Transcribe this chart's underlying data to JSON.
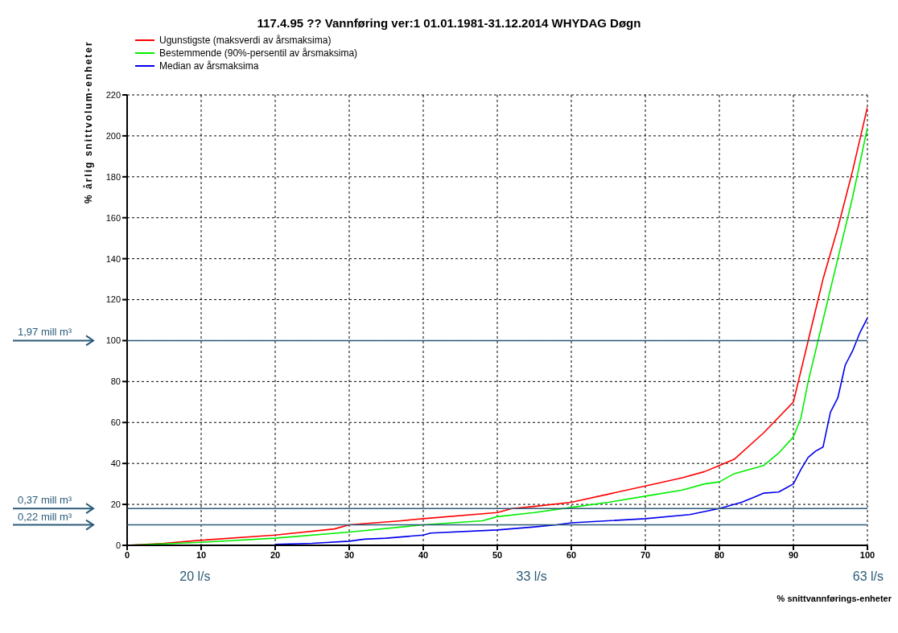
{
  "chart_data": {
    "type": "line",
    "title": "117.4.95  ??  Vannføring  ver:1 01.01.1981-31.12.2014   WHYDAG  Døgn",
    "xlabel": "% snittvannførings-enheter",
    "ylabel": "% årlig snittvolum-enheter",
    "xlim": [
      0,
      100
    ],
    "xticks": [
      0,
      10,
      20,
      30,
      40,
      50,
      60,
      70,
      80,
      90,
      100
    ],
    "ylim": [
      0,
      220
    ],
    "yticks": [
      0,
      20,
      40,
      60,
      80,
      100,
      120,
      140,
      160,
      180,
      200,
      220
    ],
    "grid": true,
    "legend": "top left",
    "marker": "none",
    "line_style": "solid",
    "series": [
      {
        "name": "Ugunstigste (maksverdi av årsmaksima)",
        "color": "#ff0000",
        "x": [
          0,
          5,
          10,
          20,
          28,
          30,
          37,
          40,
          50,
          52,
          55,
          60,
          65,
          70,
          75,
          78,
          80,
          82,
          86,
          90,
          92,
          94,
          96,
          98,
          100
        ],
        "values": [
          0,
          1,
          2.5,
          5,
          8,
          10,
          12,
          13,
          16,
          18,
          19,
          21,
          25,
          29,
          33,
          36,
          39,
          42,
          55,
          70,
          100,
          130,
          155,
          183,
          214
        ]
      },
      {
        "name": "Bestemmende (90%-persentil av årsmaksima)",
        "color": "#00ee00",
        "x": [
          0,
          10,
          20,
          30,
          40,
          48,
          50,
          55,
          60,
          65,
          70,
          75,
          78,
          80,
          82,
          86,
          88,
          90,
          91,
          92,
          94,
          96,
          98,
          100
        ],
        "values": [
          0,
          1.5,
          3.5,
          6.5,
          10,
          12,
          14,
          16,
          18.5,
          21,
          24,
          27,
          30,
          31,
          35,
          39,
          45,
          53,
          62,
          80,
          110,
          140,
          170,
          204
        ]
      },
      {
        "name": "Median av årsmaksima",
        "color": "#0000ee",
        "x": [
          20,
          25,
          30,
          32,
          35,
          40,
          41,
          50,
          55,
          58,
          60,
          70,
          76,
          80,
          83,
          85,
          86,
          88,
          89,
          90,
          91,
          92,
          93,
          94,
          95,
          96,
          97,
          98,
          99,
          100
        ],
        "values": [
          0.5,
          1,
          2,
          3,
          3.5,
          5,
          6,
          7.5,
          9,
          10,
          11,
          13,
          15,
          18,
          21,
          24,
          25.5,
          26,
          28,
          30,
          37,
          43,
          46,
          48,
          65,
          72,
          88,
          95,
          104,
          111
        ]
      }
    ],
    "ref_lines": [
      {
        "axis": "y",
        "value": 100,
        "label": "1,97 mill m³",
        "color": "#2b5a78"
      },
      {
        "axis": "y",
        "value": 18,
        "label": "0,37 mill m³",
        "color": "#2b5a78"
      },
      {
        "axis": "y",
        "value": 10,
        "label": "0,22 mill m³",
        "color": "#2b5a78"
      }
    ],
    "annotations": [
      "20 l/s",
      "33 l/s",
      "63 l/s"
    ]
  }
}
